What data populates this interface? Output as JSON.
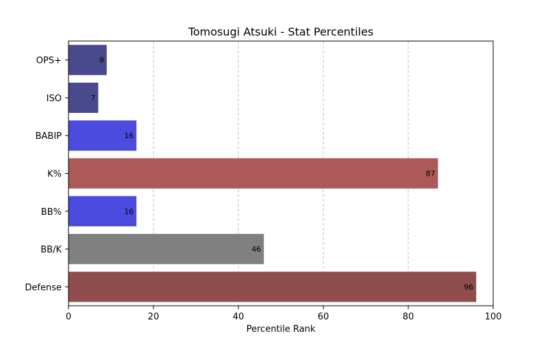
{
  "chart_data": {
    "type": "bar",
    "orientation": "horizontal",
    "title": "Tomosugi Atsuki - Stat Percentiles",
    "xlabel": "Percentile Rank",
    "ylabel": "",
    "xlim": [
      0,
      100
    ],
    "xticks": [
      0,
      20,
      40,
      60,
      80,
      100
    ],
    "grid": "x-dashed",
    "categories": [
      "OPS+",
      "ISO",
      "BABIP",
      "K%",
      "BB%",
      "BB/K",
      "Defense"
    ],
    "values": [
      9,
      7,
      16,
      87,
      16,
      46,
      96
    ],
    "colors": [
      "#4a4a8e",
      "#4a4a8e",
      "#4b4bdf",
      "#ab5959",
      "#4b4bdf",
      "#808080",
      "#904d4d"
    ]
  }
}
